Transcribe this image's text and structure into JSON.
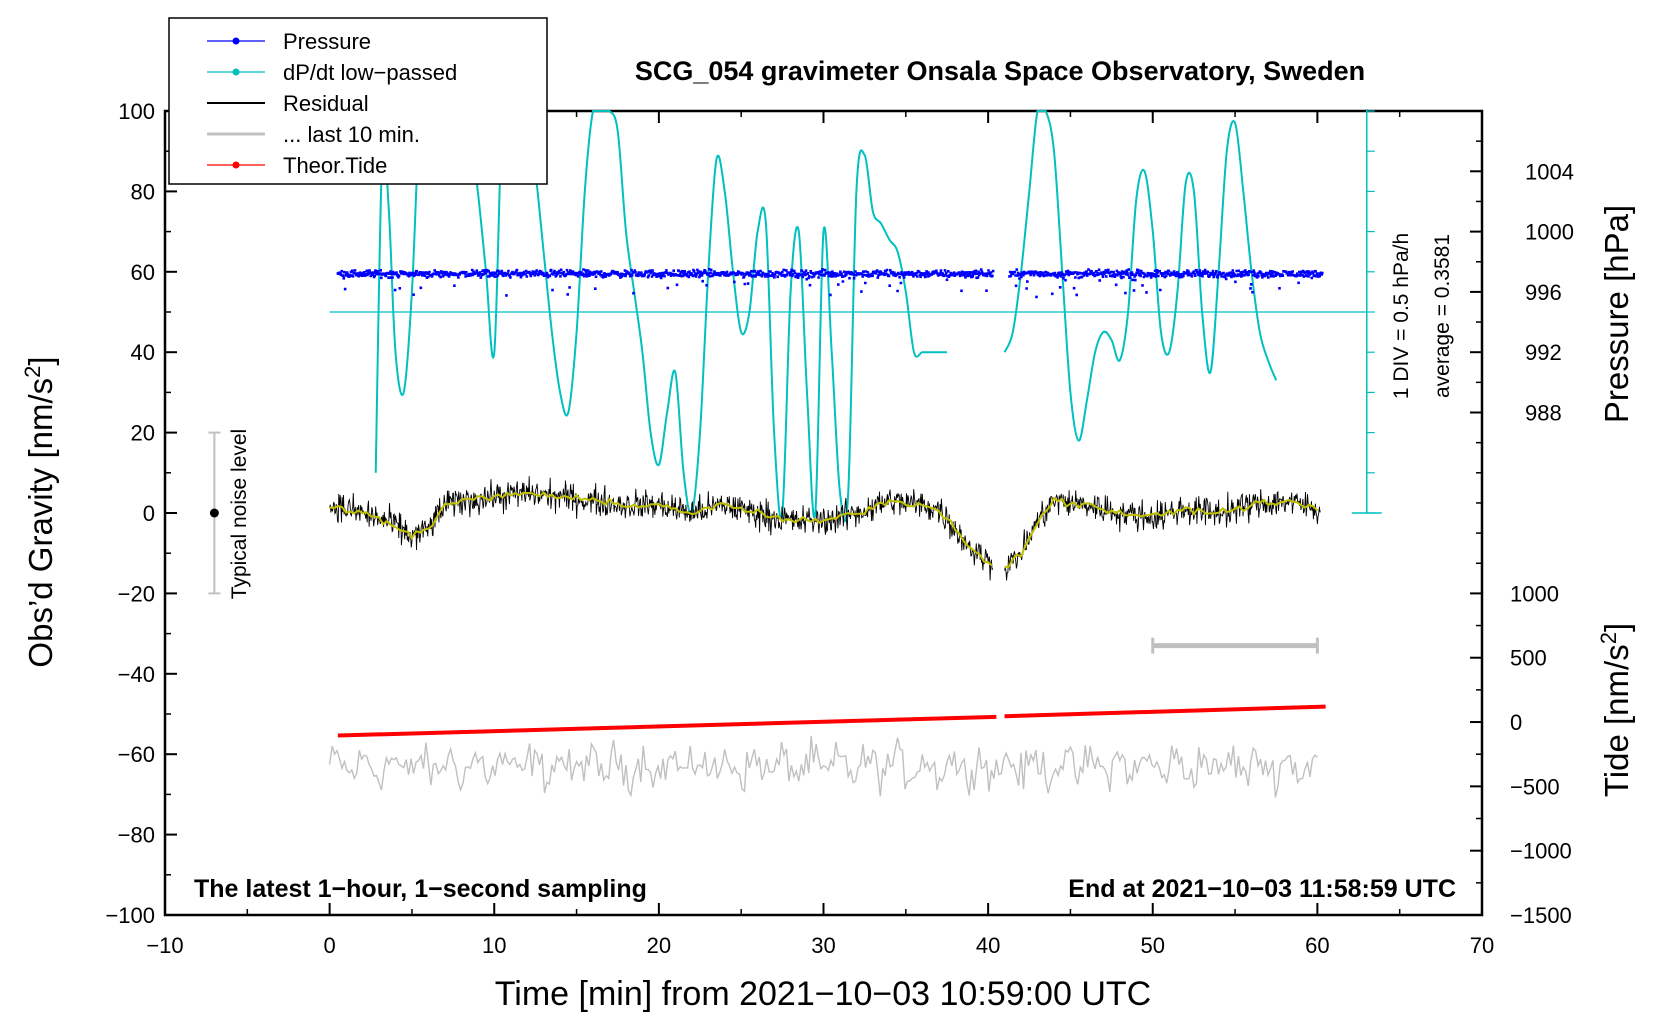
{
  "chart_data": {
    "type": "line",
    "title": "SCG_054 gravimeter Onsala Space Observatory, Sweden",
    "xlabel": "Time [min] from 2021−10−03 10:59:00 UTC",
    "ylabel_left_main": "Obs’d Gravity [nm/s",
    "ylabel_left_sup": "2",
    "ylabel_left_end": "]",
    "ylabel_right_pressure": "Pressure [hPa]",
    "ylabel_right_tide_main": "Tide [nm/s",
    "ylabel_right_tide_sup": "2",
    "ylabel_right_tide_end": "]",
    "xlim": [
      -10,
      70
    ],
    "ylim": [
      -100,
      100
    ],
    "x_ticks": [
      -10,
      0,
      10,
      20,
      30,
      40,
      50,
      60,
      70
    ],
    "x_tick_labels": [
      "−10",
      "0",
      "10",
      "20",
      "30",
      "40",
      "50",
      "60",
      "70"
    ],
    "y_ticks": [
      -100,
      -80,
      -60,
      -40,
      -20,
      0,
      20,
      40,
      60,
      80,
      100
    ],
    "y_tick_labels": [
      "−100",
      "−80",
      "−60",
      "−40",
      "−20",
      "0",
      "20",
      "40",
      "60",
      "80",
      "100"
    ],
    "pressure_axis": {
      "ticks": [
        988,
        992,
        996,
        1000,
        1004
      ],
      "tick_labels": [
        "988",
        "992",
        "996",
        "1000",
        "1004"
      ],
      "range": [
        976,
        1008
      ]
    },
    "tide_axis": {
      "ticks": [
        -1500,
        -1000,
        -500,
        0,
        500,
        1000
      ],
      "tick_labels": [
        "−1500",
        "−1000",
        "−500",
        "0",
        "500",
        "1000"
      ],
      "range": [
        -1500,
        1000
      ]
    },
    "legend": {
      "placement": "top-left",
      "entries": [
        {
          "label": "Pressure",
          "color": "#0000ff",
          "marker": true
        },
        {
          "label": "dP/dt low−passed",
          "color": "#00c0c0",
          "marker": true
        },
        {
          "label": "Residual",
          "color": "#000000",
          "marker": false
        },
        {
          "label": "... last 10 min.",
          "color": "#c0c0c0",
          "marker": false
        },
        {
          "label": "Theor.Tide",
          "color": "#ff0000",
          "marker": true
        }
      ]
    },
    "annotations": {
      "left_bottom": "The latest 1−hour, 1−second sampling",
      "right_bottom": "End at 2021−10−03 11:58:59 UTC",
      "noise": "Typical noise level",
      "dpdt_scale": "1 DIV = 0.5 hPa/h",
      "dpdt_average": "average = 0.3581"
    },
    "noise_bar": {
      "x": -7,
      "low": -20,
      "high": 20
    },
    "window_bar": {
      "x_start": 50,
      "x_end": 60,
      "y": -33
    },
    "dpdt_baseline": 50,
    "series": [
      {
        "name": "dP/dt low−passed",
        "color": "#00c0c0",
        "segments": [
          {
            "x": [
              2.8,
              3.2,
              3.6,
              4.0,
              4.5,
              5.0,
              5.5,
              6.0,
              6.5,
              7.0,
              7.5,
              8.0,
              8.5,
              9.0,
              9.5,
              10.0,
              10.5,
              11.0,
              11.5,
              12.0,
              12.5,
              13.0,
              13.5,
              14.0,
              14.5,
              15.0,
              15.5,
              16.0,
              16.5,
              17.0,
              17.5,
              18.0,
              18.5,
              19.0,
              19.5,
              20.0,
              20.5,
              21.0,
              21.5,
              22.0,
              22.5,
              23.0,
              23.5,
              24.0,
              24.5,
              25.0,
              25.5,
              26.0,
              26.5,
              27.0,
              27.5,
              28.0,
              28.5,
              29.0,
              29.5,
              30.0,
              30.5,
              31.0,
              31.5,
              32.0,
              32.5,
              33.0,
              33.5,
              34.0,
              34.5,
              35.0,
              35.5,
              36.0,
              36.5,
              37.0,
              37.5
            ],
            "y": [
              10,
              90,
              75,
              40,
              30,
              55,
              115,
              115,
              115,
              115,
              115,
              115,
              95,
              80,
              60,
              40,
              100,
              115,
              110,
              100,
              85,
              65,
              45,
              30,
              25,
              45,
              80,
              115,
              115,
              115,
              95,
              70,
              55,
              40,
              20,
              12,
              25,
              35,
              10,
              0,
              20,
              60,
              88,
              80,
              60,
              45,
              50,
              70,
              72,
              20,
              0,
              55,
              70,
              30,
              0,
              70,
              40,
              5,
              5,
              80,
              89,
              75,
              72,
              68,
              65,
              55,
              40,
              40,
              40,
              40,
              40
            ]
          },
          {
            "x": [
              41.0,
              41.5,
              42.0,
              42.5,
              43.0,
              43.5,
              44.0,
              44.5,
              45.0,
              45.5,
              46.0,
              46.5,
              47.0,
              47.5,
              48.0,
              48.5,
              49.0,
              49.5,
              50.0,
              50.5,
              51.0,
              51.5,
              52.0,
              52.5,
              53.0,
              53.5,
              54.0,
              54.5,
              55.0,
              55.5,
              56.0,
              56.5,
              57.0,
              57.5
            ],
            "y": [
              40,
              45,
              60,
              80,
              100,
              105,
              90,
              60,
              30,
              18,
              28,
              40,
              45,
              43,
              38,
              50,
              78,
              85,
              70,
              45,
              40,
              55,
              82,
              80,
              50,
              35,
              60,
              90,
              97,
              80,
              60,
              45,
              38,
              33
            ]
          }
        ]
      },
      {
        "name": "Theor.Tide",
        "color": "#ff0000",
        "unit": "nm/s2 (tide axis)",
        "segments": [
          {
            "x": [
              0.5,
              40.5
            ],
            "y": [
              -105,
              40
            ]
          },
          {
            "x": [
              41.0,
              60.5
            ],
            "y": [
              45,
              120
            ]
          }
        ]
      },
      {
        "name": "Pressure",
        "color": "#0000ff",
        "unit": "hPa (pressure axis, 0.5 min resolution)",
        "approx_level": 997.2
      },
      {
        "name": "Residual",
        "color": "#000000",
        "unit": "nm/s2",
        "smoothed_color": "#c0c000",
        "smoothed": {
          "x": [
            0,
            2,
            4,
            5,
            6,
            7,
            8,
            10,
            12,
            14,
            16,
            18,
            20,
            22,
            24,
            26,
            28,
            30,
            32,
            34,
            36,
            37,
            38,
            39,
            40,
            41,
            42,
            43,
            44,
            46,
            48,
            50,
            52,
            54,
            56,
            58,
            60
          ],
          "y": [
            2,
            0,
            -3,
            -6,
            -4,
            2,
            3,
            4,
            5,
            4,
            3,
            2,
            2,
            0,
            2,
            0,
            -2,
            -2,
            0,
            3,
            2,
            1,
            -4,
            -9,
            -12,
            -14,
            -10,
            -2,
            3,
            2,
            0,
            -1,
            1,
            0,
            2,
            3,
            1
          ]
        }
      },
      {
        "name": "... last 10 min.",
        "color": "#c0c0c0",
        "unit": "nm/s2 (offset display)",
        "approx_level": -63
      }
    ]
  }
}
